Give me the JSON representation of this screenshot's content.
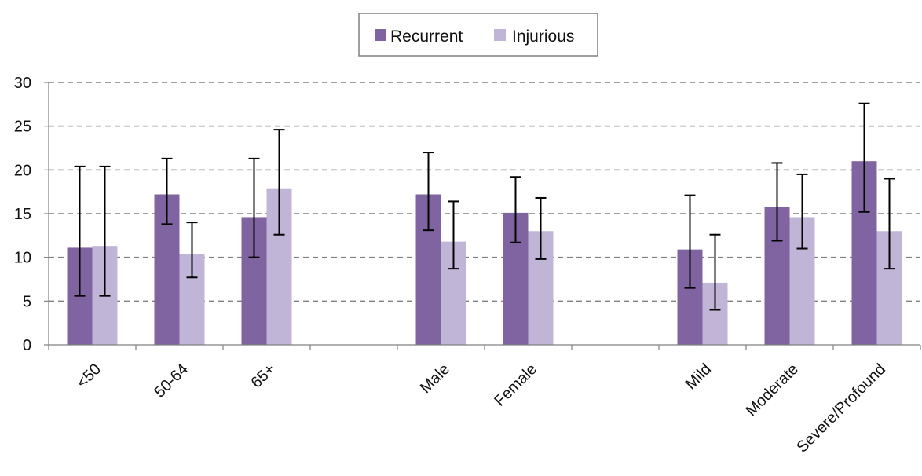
{
  "chart_data": {
    "type": "bar",
    "title": "",
    "xlabel": "",
    "ylabel": "",
    "ylim": [
      0,
      30
    ],
    "yticks": [
      0,
      5,
      10,
      15,
      20,
      25,
      30
    ],
    "grid": true,
    "legend_position": "top-center",
    "categories": [
      "<50",
      "50-64",
      "65+",
      "",
      "Male",
      "Female",
      "",
      "Mild",
      "Moderate",
      "Severe/Profound"
    ],
    "series": [
      {
        "name": "Recurrent",
        "color": "#8064a2",
        "values": [
          11.1,
          17.2,
          14.6,
          null,
          17.2,
          15.1,
          null,
          10.9,
          15.8,
          21.0
        ],
        "error_low": [
          5.6,
          13.8,
          10.0,
          null,
          13.1,
          11.7,
          null,
          6.5,
          11.9,
          15.2
        ],
        "error_high": [
          20.4,
          21.3,
          21.3,
          null,
          22.0,
          19.2,
          null,
          17.1,
          20.8,
          27.6
        ]
      },
      {
        "name": "Injurious",
        "color": "#c0b4d7",
        "values": [
          11.3,
          10.4,
          17.9,
          null,
          11.8,
          13.0,
          null,
          7.1,
          14.6,
          13.0
        ],
        "error_low": [
          5.6,
          7.7,
          12.6,
          null,
          8.7,
          9.8,
          null,
          4.0,
          11.0,
          8.7
        ],
        "error_high": [
          20.4,
          14.0,
          24.6,
          null,
          16.4,
          16.8,
          null,
          12.6,
          19.5,
          19.0
        ]
      }
    ]
  }
}
